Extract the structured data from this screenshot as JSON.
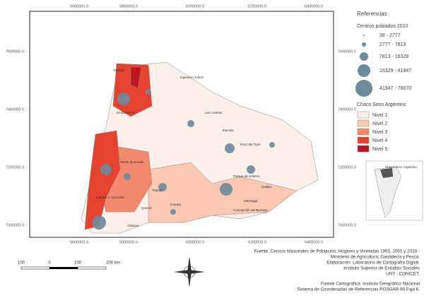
{
  "map": {
    "x_labels": [
      "5600000.0",
      "5800000.0",
      "6000000.0",
      "6200000.0",
      "6400000.0"
    ],
    "y_labels": [
      "7600000.0",
      "7400000.0",
      "7200000.0",
      "7000000.0"
    ],
    "places": [
      "Ingeniero Juárez",
      "Las Lomitas",
      "Ibarreta",
      "Pozo del Tigre",
      "Tartagal",
      "Embarcación",
      "Pampa del Infierno",
      "Quitilipi",
      "Machagai",
      "Charata",
      "Monte Quemado",
      "Tintina",
      "Quimilí",
      "Añatuya",
      "Joaquín V. González",
      "Concepción del Bermejo"
    ]
  },
  "legend": {
    "title": "Referencias",
    "subtitle": "Centros poblados 2010",
    "classes": [
      "38 - 2777",
      "2777 - 7813",
      "7813 - 16329",
      "16329 - 41947",
      "41947 - 76070"
    ],
    "region_title": "Chaco Seco Argentino",
    "levels": [
      "Nivel 1",
      "Nivel 2",
      "Nivel 3",
      "Nivel 4",
      "Nivel 5"
    ],
    "level_colors": [
      "#fdf0ea",
      "#fbc8b1",
      "#f5896c",
      "#e5432f",
      "#bd141d"
    ],
    "inset_label": "Chaco Seco Argentino"
  },
  "scale": {
    "labels": [
      "100",
      "0",
      "100",
      "200 km"
    ]
  },
  "sources": [
    "Fuente: Censos Nacionales de Población, Hogares y Viviendas 1991, 2001 y 2010 -",
    "Ministerio de Agricultura, Ganadería y Pesca.",
    "Elaboración: Laboratorio de Cartografía Digital.",
    "Instituto Superior de Estudios Sociales",
    "UNT - CONICET.",
    "Fuente Cartográfica: Instituto Geográfico Nacional",
    "Sistema de Coordenadas de Referencias POSGAR 98 Faja 6."
  ]
}
